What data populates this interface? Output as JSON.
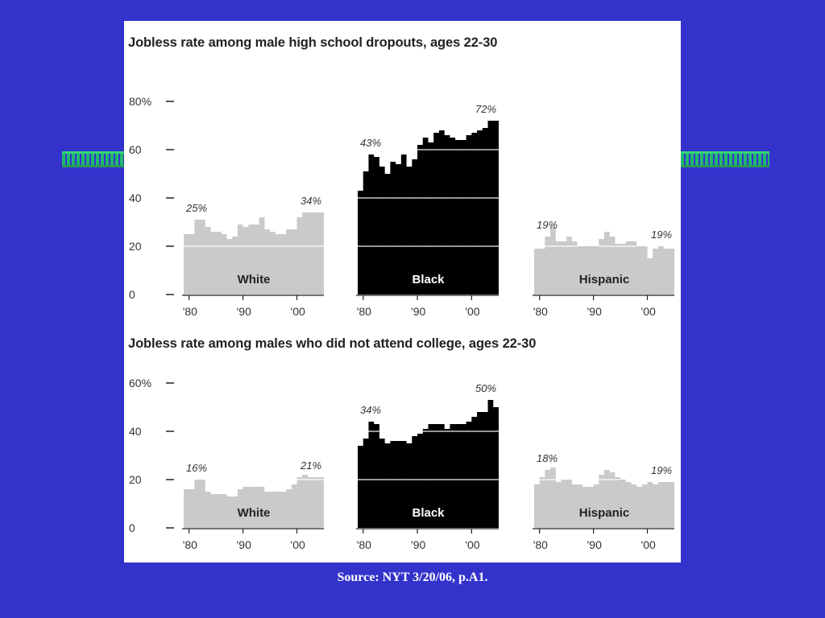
{
  "source": "Source: NYT 3/20/06, p.A1.",
  "colors": {
    "background": "#3333cc",
    "light": "#c8cacc",
    "dark": "#000000",
    "gridline": "#ffffff"
  },
  "x_tick_labels": [
    "'80",
    "'90",
    "'00"
  ],
  "chart_data": [
    {
      "type": "area",
      "title": "Jobless rate among male high school dropouts, ages 22-30",
      "ylim": [
        0,
        80
      ],
      "y_ticks": [
        "80%",
        "60",
        "40",
        "20",
        "0"
      ],
      "x": [
        1979,
        1980,
        1981,
        1982,
        1983,
        1984,
        1985,
        1986,
        1987,
        1988,
        1989,
        1990,
        1991,
        1992,
        1993,
        1994,
        1995,
        1996,
        1997,
        1998,
        1999,
        2000,
        2001,
        2002,
        2003,
        2004
      ],
      "series": [
        {
          "name": "White",
          "color": "#c8cacc",
          "first_label": "25%",
          "last_label": "34%",
          "values": [
            25,
            25,
            31,
            31,
            28,
            26,
            26,
            25,
            23,
            24,
            29,
            28,
            29,
            29,
            32,
            27,
            26,
            25,
            25,
            27,
            27,
            32,
            34,
            34,
            34,
            34
          ]
        },
        {
          "name": "Black",
          "color": "#000000",
          "first_label": "43%",
          "last_label": "72%",
          "values": [
            43,
            51,
            58,
            57,
            53,
            50,
            55,
            54,
            58,
            53,
            56,
            62,
            65,
            63,
            67,
            68,
            66,
            65,
            64,
            64,
            66,
            67,
            68,
            69,
            72,
            72
          ]
        },
        {
          "name": "Hispanic",
          "color": "#c8cacc",
          "first_label": "19%",
          "last_label": "19%",
          "values": [
            19,
            19,
            24,
            28,
            22,
            22,
            24,
            22,
            20,
            20,
            20,
            20,
            23,
            26,
            24,
            21,
            21,
            22,
            22,
            20,
            20,
            15,
            19,
            20,
            19,
            19
          ]
        }
      ]
    },
    {
      "type": "area",
      "title": "Jobless rate among males who did not attend college, ages 22-30",
      "ylim": [
        0,
        60
      ],
      "y_ticks": [
        "60%",
        "40",
        "20",
        "0"
      ],
      "x": [
        1979,
        1980,
        1981,
        1982,
        1983,
        1984,
        1985,
        1986,
        1987,
        1988,
        1989,
        1990,
        1991,
        1992,
        1993,
        1994,
        1995,
        1996,
        1997,
        1998,
        1999,
        2000,
        2001,
        2002,
        2003,
        2004
      ],
      "series": [
        {
          "name": "White",
          "color": "#c8cacc",
          "first_label": "16%",
          "last_label": "21%",
          "values": [
            16,
            16,
            20,
            20,
            15,
            14,
            14,
            14,
            13,
            13,
            16,
            17,
            17,
            17,
            17,
            15,
            15,
            15,
            15,
            16,
            18,
            21,
            22,
            21,
            21,
            21
          ]
        },
        {
          "name": "Black",
          "color": "#000000",
          "first_label": "34%",
          "last_label": "50%",
          "values": [
            34,
            37,
            44,
            43,
            37,
            35,
            36,
            36,
            36,
            35,
            38,
            39,
            41,
            43,
            43,
            43,
            41,
            43,
            43,
            43,
            44,
            46,
            48,
            48,
            53,
            50
          ]
        },
        {
          "name": "Hispanic",
          "color": "#c8cacc",
          "first_label": "18%",
          "last_label": "19%",
          "values": [
            18,
            21,
            24,
            25,
            19,
            20,
            20,
            18,
            18,
            17,
            17,
            18,
            22,
            24,
            23,
            21,
            20,
            19,
            18,
            17,
            18,
            19,
            18,
            19,
            19,
            19
          ]
        }
      ]
    }
  ]
}
